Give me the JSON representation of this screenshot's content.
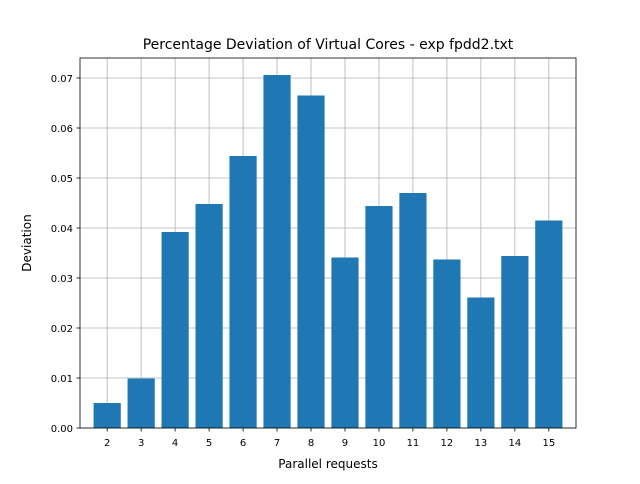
{
  "chart_data": {
    "type": "bar",
    "title": "Percentage Deviation of Virtual Cores - exp fpdd2.txt",
    "xlabel": "Parallel requests",
    "ylabel": "Deviation",
    "categories": [
      "2",
      "3",
      "4",
      "5",
      "6",
      "7",
      "8",
      "9",
      "10",
      "11",
      "12",
      "13",
      "14",
      "15"
    ],
    "values": [
      0.005,
      0.0099,
      0.0392,
      0.0448,
      0.0544,
      0.0706,
      0.0665,
      0.0341,
      0.0444,
      0.047,
      0.0337,
      0.0261,
      0.0344,
      0.0415
    ],
    "ylim": [
      0,
      0.07
    ],
    "yticks": [
      "0.00",
      "0.01",
      "0.02",
      "0.03",
      "0.04",
      "0.05",
      "0.06",
      "0.07"
    ],
    "grid": true,
    "bar_color": "#1f77b4"
  }
}
